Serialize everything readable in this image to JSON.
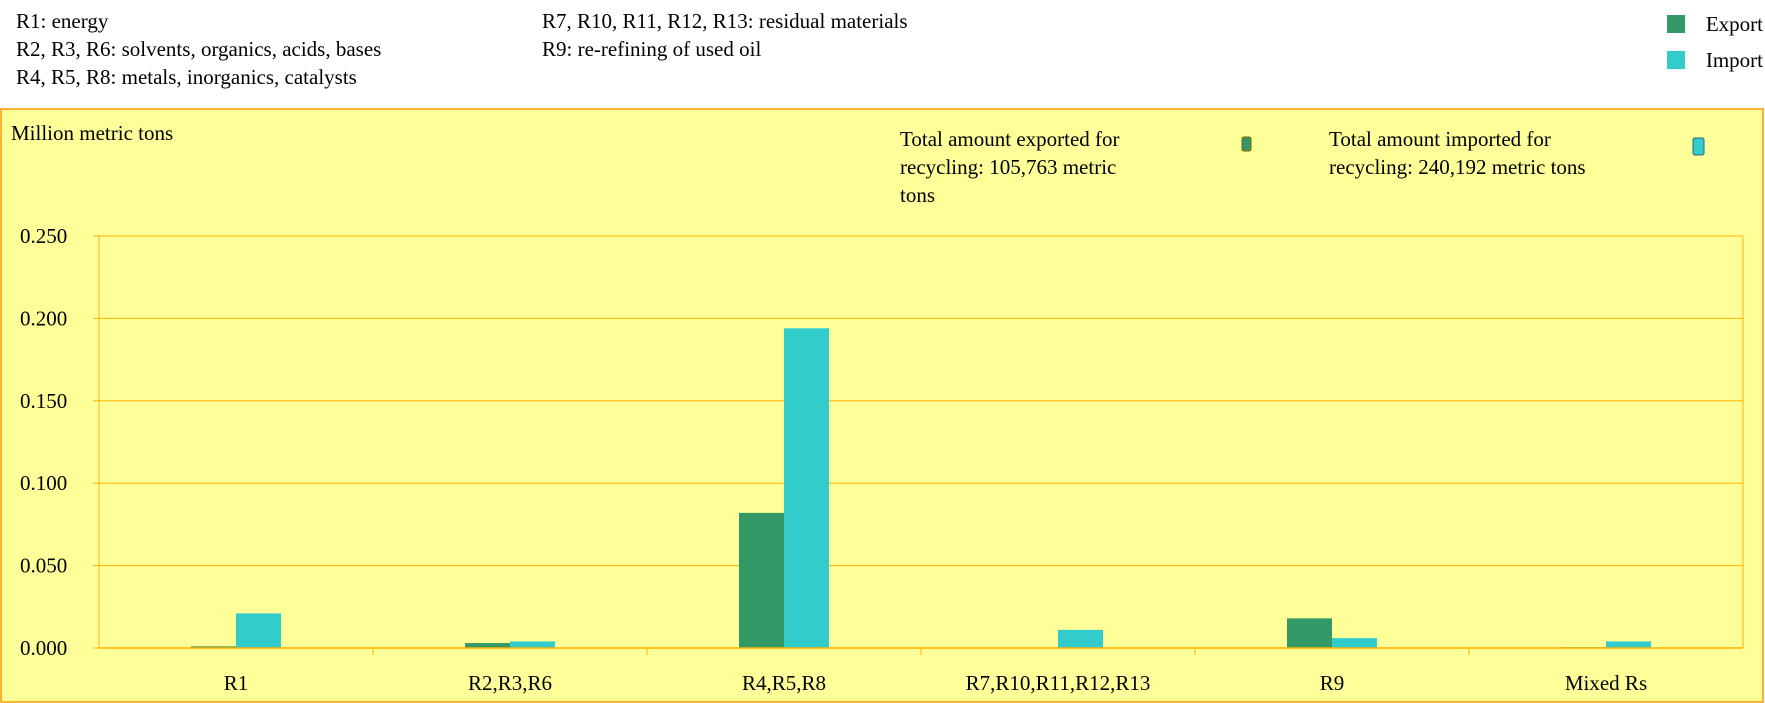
{
  "notes": {
    "left": [
      "R1: energy",
      "R2, R3, R6: solvents, organics, acids, bases",
      "R4, R5, R8: metals, inorganics, catalysts"
    ],
    "right": [
      "R7, R10, R11, R12, R13: residual materials",
      "R9: re-refining of used oil"
    ]
  },
  "colors": {
    "export": "#339966",
    "import": "#33CCCC",
    "plot_bg": "#FFFF99",
    "border": "#FF9900",
    "gridline": "#FFB000"
  },
  "chart_data": {
    "type": "bar",
    "ylabel": "Million metric tons",
    "ylim": [
      0,
      0.25
    ],
    "yticks": [
      "0.000",
      "0.050",
      "0.100",
      "0.150",
      "0.200",
      "0.250"
    ],
    "categories": [
      "R1",
      "R2,R3,R6",
      "R4,R5,R8",
      "R7,R10,R11,R12,R13",
      "R9",
      "Mixed Rs"
    ],
    "series": [
      {
        "name": "Export",
        "values": [
          0.001,
          0.003,
          0.082,
          0.0,
          0.018,
          0.0005
        ]
      },
      {
        "name": "Import",
        "values": [
          0.021,
          0.004,
          0.194,
          0.011,
          0.006,
          0.004
        ]
      }
    ],
    "annotations": {
      "export_total": "Total amount exported for recycling: 105,763 metric tons",
      "import_total": "Total amount imported for recycling: 240,192 metric tons"
    },
    "grid": true,
    "legend": "top-right"
  }
}
